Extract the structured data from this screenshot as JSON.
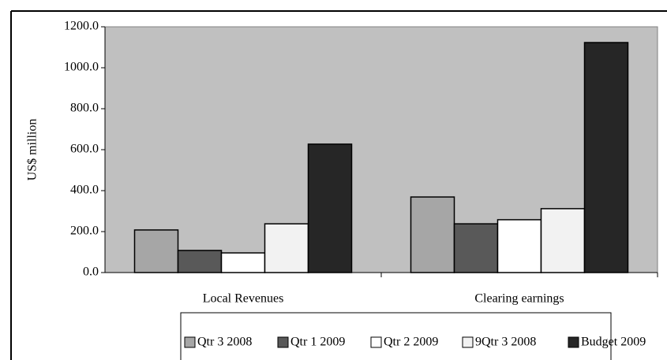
{
  "chart_data": {
    "type": "bar",
    "y_label": "US$ million",
    "categories": [
      "Local Revenues",
      "Clearing earnings"
    ],
    "series": [
      {
        "name": "Qtr 3 2008",
        "color": "#a6a6a6",
        "values": [
          208,
          369
        ]
      },
      {
        "name": "Qtr 1 2009",
        "color": "#595959",
        "values": [
          108,
          238
        ]
      },
      {
        "name": "Qtr 2 2009",
        "color": "#ffffff",
        "values": [
          96,
          258
        ]
      },
      {
        "name": "9Qtr 3 2008",
        "color": "#f2f2f2",
        "values": [
          238,
          312
        ]
      },
      {
        "name": "Budget 2009",
        "color": "#262626",
        "values": [
          627,
          1123
        ]
      }
    ],
    "ylim": [
      0,
      1200
    ],
    "yticks": [
      {
        "value": 0,
        "label": "0.0"
      },
      {
        "value": 200,
        "label": "200.0"
      },
      {
        "value": 400,
        "label": "400.0"
      },
      {
        "value": 600,
        "label": "600.0"
      },
      {
        "value": 800,
        "label": "800.0"
      },
      {
        "value": 1000,
        "label": "1000.0"
      },
      {
        "value": 1200,
        "label": "1200.0"
      }
    ],
    "plot_background": "#c0c0c0"
  }
}
